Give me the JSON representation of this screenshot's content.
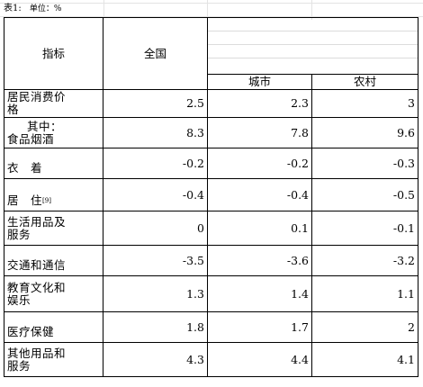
{
  "caption": {
    "title": "表1:",
    "unit": "单位：%"
  },
  "headers": {
    "indicator": "指标",
    "national": "全国",
    "urban": "城市",
    "rural": "农村"
  },
  "rows": [
    {
      "label": "居民消费价格",
      "label_line1": "居民消费价",
      "label_line2": "格",
      "national": "2.5",
      "urban": "2.3",
      "rural": "3"
    },
    {
      "label": "其中：食品烟酒",
      "label_line1": "其中：",
      "label_line2": "食品烟酒",
      "national": "8.3",
      "urban": "7.8",
      "rural": "9.6"
    },
    {
      "label": "衣着",
      "label_line1": "衣　着",
      "national": "-0.2",
      "urban": "-0.2",
      "rural": "-0.3"
    },
    {
      "label": "居住",
      "label_line1": "居　住",
      "note": "[9]",
      "national": "-0.4",
      "urban": "-0.4",
      "rural": "-0.5"
    },
    {
      "label": "生活用品及服务",
      "label_line1": "生活用品及",
      "label_line2": "服务",
      "national": "0",
      "urban": "0.1",
      "rural": "-0.1"
    },
    {
      "label": "交通和通信",
      "label_line1": "交通和通信",
      "national": "-3.5",
      "urban": "-3.6",
      "rural": "-3.2"
    },
    {
      "label": "教育文化和娱乐",
      "label_line1": "教育文化和",
      "label_line2": "娱乐",
      "national": "1.3",
      "urban": "1.4",
      "rural": "1.1"
    },
    {
      "label": "医疗保健",
      "label_line1": "医疗保健",
      "national": "1.8",
      "urban": "1.7",
      "rural": "2"
    },
    {
      "label": "其他用品和服务",
      "label_line1": "其他用品和",
      "label_line2": "服务",
      "national": "4.3",
      "urban": "4.4",
      "rural": "4.1"
    }
  ]
}
